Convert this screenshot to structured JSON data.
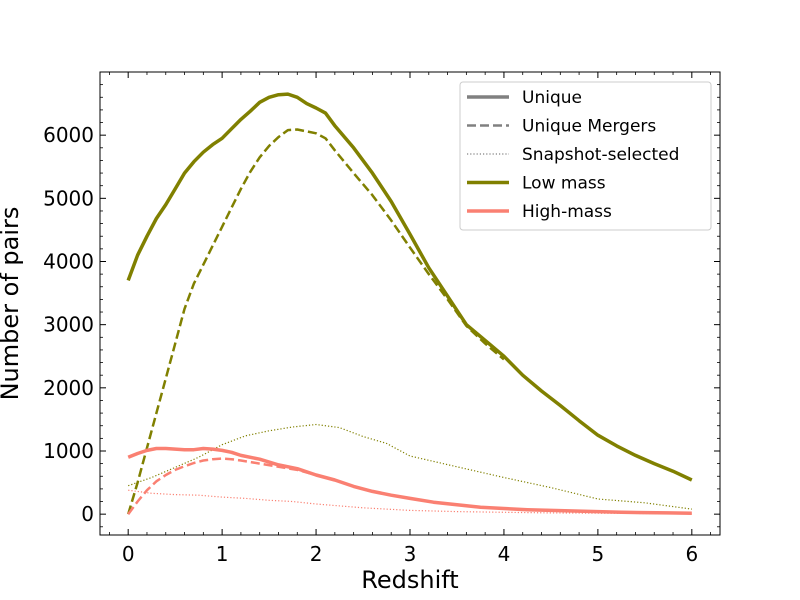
{
  "chart_data": {
    "type": "line",
    "xlabel": "Redshift",
    "ylabel": "Number of pairs",
    "xlim": [
      -0.3,
      6.3
    ],
    "ylim": [
      -330,
      7000
    ],
    "xticks": [
      0,
      1,
      2,
      3,
      4,
      5,
      6
    ],
    "yticks": [
      0,
      1000,
      2000,
      3000,
      4000,
      5000,
      6000
    ],
    "x_tick_labels": [
      "0",
      "1",
      "2",
      "3",
      "4",
      "5",
      "6"
    ],
    "y_tick_labels": [
      "0",
      "1000",
      "2000",
      "3000",
      "4000",
      "5000",
      "6000"
    ],
    "grid": false,
    "legend_position": "top-right",
    "legend": [
      {
        "label": "Unique",
        "style": "solid",
        "color": "#808080"
      },
      {
        "label": "Unique Mergers",
        "style": "dashed",
        "color": "#808080"
      },
      {
        "label": "Snapshot-selected",
        "style": "dotted",
        "color": "#808080"
      },
      {
        "label": "Low mass",
        "style": "solid",
        "color": "#808000"
      },
      {
        "label": "High-mass",
        "style": "solid",
        "color": "#fa8072"
      }
    ],
    "series": [
      {
        "group": "Low mass",
        "kind": "Unique",
        "color": "#808000",
        "style": "solid",
        "width": 3.5,
        "x": [
          0,
          0.1,
          0.2,
          0.3,
          0.4,
          0.5,
          0.6,
          0.7,
          0.8,
          0.9,
          1.0,
          1.1,
          1.2,
          1.3,
          1.4,
          1.5,
          1.6,
          1.7,
          1.8,
          1.9,
          2.0,
          2.1,
          2.2,
          2.4,
          2.6,
          2.8,
          3.0,
          3.2,
          3.4,
          3.6,
          3.8,
          4.0,
          4.2,
          4.4,
          4.6,
          4.8,
          5.0,
          5.2,
          5.4,
          5.6,
          5.8,
          6.0
        ],
        "y": [
          3700,
          4100,
          4400,
          4680,
          4900,
          5150,
          5400,
          5580,
          5730,
          5850,
          5950,
          6100,
          6250,
          6380,
          6520,
          6600,
          6640,
          6650,
          6600,
          6500,
          6430,
          6350,
          6150,
          5800,
          5400,
          4950,
          4430,
          3900,
          3450,
          3000,
          2750,
          2500,
          2200,
          1950,
          1720,
          1480,
          1250,
          1080,
          930,
          800,
          680,
          540
        ]
      },
      {
        "group": "Low mass",
        "kind": "Unique Mergers",
        "color": "#808000",
        "style": "dashed",
        "width": 2.5,
        "x": [
          0,
          0.1,
          0.2,
          0.3,
          0.4,
          0.5,
          0.6,
          0.7,
          0.8,
          0.9,
          1.0,
          1.1,
          1.2,
          1.3,
          1.4,
          1.5,
          1.6,
          1.7,
          1.8,
          1.9,
          2.0,
          2.1,
          2.2,
          2.4,
          2.6,
          2.8,
          3.0,
          3.2,
          3.4,
          3.6,
          3.8,
          4.0
        ],
        "y": [
          0,
          500,
          1050,
          1600,
          2150,
          2700,
          3250,
          3650,
          3950,
          4250,
          4550,
          4850,
          5150,
          5420,
          5650,
          5830,
          5970,
          6080,
          6090,
          6060,
          6030,
          5950,
          5760,
          5400,
          5050,
          4650,
          4220,
          3800,
          3400,
          2980,
          2700,
          2450
        ]
      },
      {
        "group": "Low mass",
        "kind": "Snapshot-selected",
        "color": "#808000",
        "style": "dotted",
        "width": 1.2,
        "x": [
          0,
          0.25,
          0.5,
          0.75,
          1.0,
          1.25,
          1.5,
          1.75,
          2.0,
          2.25,
          2.5,
          2.75,
          3.0,
          3.5,
          4.0,
          4.5,
          5.0,
          5.5,
          6.0
        ],
        "y": [
          450,
          580,
          740,
          900,
          1100,
          1240,
          1320,
          1380,
          1420,
          1370,
          1230,
          1120,
          920,
          750,
          580,
          420,
          240,
          180,
          80
        ]
      },
      {
        "group": "High-mass",
        "kind": "Unique",
        "color": "#fa8072",
        "style": "solid",
        "width": 3.5,
        "x": [
          0,
          0.1,
          0.2,
          0.3,
          0.4,
          0.5,
          0.6,
          0.7,
          0.8,
          0.9,
          1.0,
          1.1,
          1.2,
          1.4,
          1.6,
          1.8,
          2.0,
          2.2,
          2.4,
          2.6,
          2.8,
          3.0,
          3.25,
          3.5,
          3.75,
          4.0,
          4.25,
          4.5,
          4.75,
          5.0,
          5.25,
          5.5,
          5.75,
          6.0
        ],
        "y": [
          900,
          960,
          1010,
          1040,
          1040,
          1030,
          1020,
          1020,
          1040,
          1030,
          1010,
          980,
          930,
          870,
          780,
          720,
          620,
          540,
          440,
          360,
          300,
          250,
          190,
          150,
          110,
          90,
          70,
          60,
          50,
          40,
          30,
          25,
          20,
          15
        ]
      },
      {
        "group": "High-mass",
        "kind": "Unique Mergers",
        "color": "#fa8072",
        "style": "dashed",
        "width": 2.5,
        "x": [
          0,
          0.1,
          0.2,
          0.3,
          0.4,
          0.5,
          0.6,
          0.7,
          0.8,
          0.9,
          1.0,
          1.1,
          1.2,
          1.4,
          1.6,
          1.8,
          2.0
        ],
        "y": [
          0,
          200,
          380,
          520,
          620,
          700,
          760,
          810,
          850,
          870,
          880,
          870,
          850,
          800,
          750,
          700,
          620
        ]
      },
      {
        "group": "High-mass",
        "kind": "Snapshot-selected",
        "color": "#fa8072",
        "style": "dotted",
        "width": 1.2,
        "x": [
          0,
          0.25,
          0.5,
          0.75,
          1.0,
          1.25,
          1.5,
          1.75,
          2.0,
          2.5,
          3.0,
          3.5,
          4.0,
          4.5,
          5.0,
          5.5,
          6.0
        ],
        "y": [
          380,
          330,
          310,
          300,
          270,
          250,
          220,
          200,
          160,
          100,
          60,
          40,
          30,
          20,
          15,
          10,
          5
        ]
      }
    ]
  }
}
